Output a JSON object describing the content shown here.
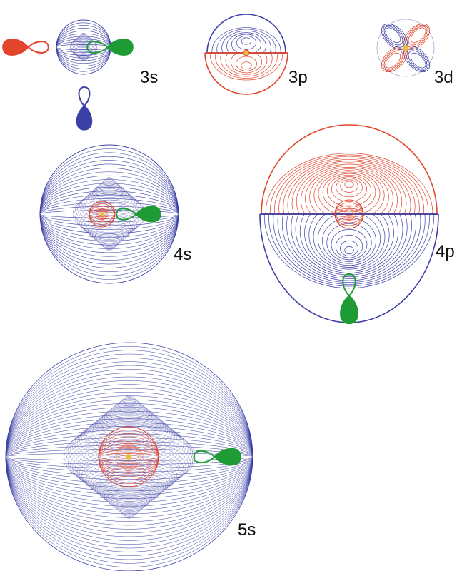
{
  "orbitals": [
    {
      "label": "3s"
    },
    {
      "label": "3p"
    },
    {
      "label": "3d"
    },
    {
      "label": "4s"
    },
    {
      "label": "4p"
    },
    {
      "label": "5s"
    }
  ]
}
